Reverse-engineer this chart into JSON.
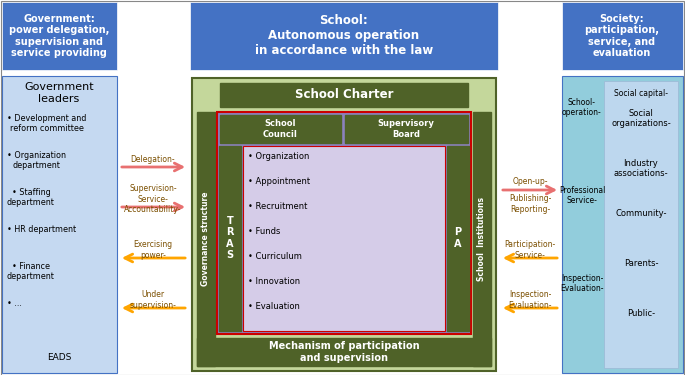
{
  "fig_w": 6.85,
  "fig_h": 3.75,
  "dpi": 100,
  "bg": "#ffffff",
  "blue_hdr": "#4472C4",
  "white": "#ffffff",
  "lhdr": "Government:\npower delegation,\nsupervision and\nservice providing",
  "chdr": "School:\nAutonomous operation\nin accordance with the law",
  "rhdr": "Society:\nparticipation,\nservice, and\nevaluation",
  "gov_bg": "#C5D9F1",
  "gov_title": "Government\nleaders",
  "gov_bullets": [
    "Development and\nreform committee",
    "Organization\ndepartment",
    "Staffing\ndepartment",
    "HR department",
    "Finance\ndepartment",
    "..."
  ],
  "gov_eads": "EADS",
  "school_green_lt": "#C4D79B",
  "school_green_dk": "#4F6228",
  "school_charter": "School Charter",
  "red_border": "#CC0000",
  "purple_bg": "#8B82BE",
  "light_inner": "#D4CCE8",
  "tras_lbl": "T\nR\nA\nS",
  "pa_lbl": "P\nA",
  "gov_struct_lbl": "Governance structure",
  "school_inst_lbl": "School  Institutions",
  "sc_lbl": "School\nCouncil",
  "sb_lbl": "Supervisory\nBoard",
  "bullets": [
    "Organization",
    "Appointment",
    "Recruitment",
    "Funds",
    "Curriculum",
    "Innovation",
    "Evaluation"
  ],
  "mech_lbl": "Mechanism of participation\nand supervision",
  "society_bg": "#92CDDC",
  "society_inner_bg": "#BDD7EE",
  "soc_left_labels": [
    "School-\noperation-",
    "Professional\nService-",
    "Inspection-\nEvaluation-"
  ],
  "soc_right_title": "Social capital-",
  "soc_right_items": [
    "Social\norganizations-",
    "Industry\nassociations-",
    "Community-",
    "Parents-",
    "Public-"
  ],
  "arrow_pink": "#E87070",
  "arrow_orange": "#FFA500",
  "arrow_text_color": "#7B4F00",
  "left_arrow_labels": [
    "Delegation-",
    "Supervision-\nService-\nAccountability-",
    "Exercising\npower-",
    "Under\nsupervision-"
  ],
  "right_arrow_labels": [
    "Open-up-",
    "Publishing-\nReporting-",
    "Participation-\nService-",
    "Inspection-\nEvaluation-"
  ]
}
